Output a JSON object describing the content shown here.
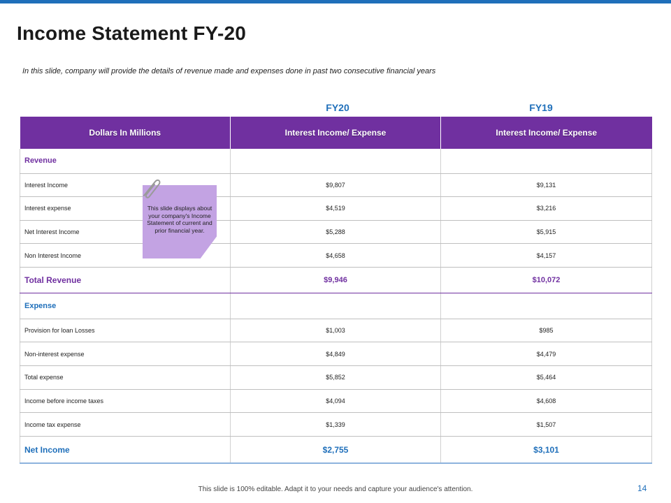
{
  "slide": {
    "title": "Income Statement FY-20",
    "subtitle": "In this slide, company will provide the details of revenue made and expenses done in past two consecutive financial years",
    "footer": "This slide is 100% editable. Adapt it to your needs and capture your audience's attention.",
    "page_number": "14"
  },
  "colors": {
    "accent_purple": "#7030a0",
    "accent_blue": "#1f6fba",
    "sticky_note": "#c3a3e3"
  },
  "years": {
    "fy20": "FY20",
    "fy19": "FY19"
  },
  "table": {
    "headers": [
      "Dollars In Millions",
      "Interest Income/ Expense",
      "Interest Income/ Expense"
    ],
    "revenue_label": "Revenue",
    "revenue_rows": [
      {
        "label": "Interest Income",
        "fy20": "$9,807",
        "fy19": "$9,131"
      },
      {
        "label": "Interest expense",
        "fy20": "$4,519",
        "fy19": "$3,216"
      },
      {
        "label": "Net Interest Income",
        "fy20": "$5,288",
        "fy19": "$5,915"
      },
      {
        "label": "Non Interest Income",
        "fy20": "$4,658",
        "fy19": "$4,157"
      }
    ],
    "total_revenue": {
      "label": "Total Revenue",
      "fy20": "$9,946",
      "fy19": "$10,072"
    },
    "expense_label": "Expense",
    "expense_rows": [
      {
        "label": "Provision for loan Losses",
        "fy20": "$1,003",
        "fy19": "$985"
      },
      {
        "label": "Non-interest expense",
        "fy20": "$4,849",
        "fy19": "$4,479"
      },
      {
        "label": "Total expense",
        "fy20": "$5,852",
        "fy19": "$5,464"
      },
      {
        "label": "Income before income taxes",
        "fy20": "$4,094",
        "fy19": "$4,608"
      },
      {
        "label": "Income tax expense",
        "fy20": "$1,339",
        "fy19": "$1,507"
      }
    ],
    "net_income": {
      "label": "Net Income",
      "fy20": "$2,755",
      "fy19": "$3,101"
    }
  },
  "sticky_note": {
    "icon": "paperclip-icon",
    "text": "This slide displays about your company's Income Statement of current and prior financial year."
  }
}
